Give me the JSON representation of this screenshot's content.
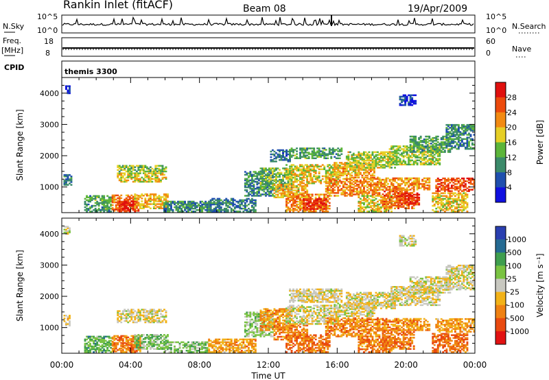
{
  "header": {
    "title": "Rankin Inlet (fitACF)",
    "beam": "Beam 08",
    "date": "19/Apr/2009"
  },
  "strip_labels": {
    "nsky": "N.Sky",
    "nsky_top": "10^5",
    "nsky_bottom": "10^0",
    "nsearch": "N.Search",
    "nsearch_top": "10^5",
    "nsearch_bottom": "10^0",
    "freq": "Freq.",
    "freq_unit": "[MHz]",
    "freq_top": "18",
    "freq_bottom": "8",
    "nave": "Nave",
    "nave_top": "60",
    "nave_bottom": "0",
    "cpid": "CPID",
    "cpid_value": "themis 3300"
  },
  "chart_data": [
    {
      "type": "heatmap",
      "name": "power",
      "ylabel": "Slant Range [km]",
      "xlabel": "Time UT",
      "x_ticks": [
        "00:00",
        "04:00",
        "08:00",
        "12:00",
        "16:00",
        "20:00",
        "00:00"
      ],
      "xlim_hours": [
        0,
        24
      ],
      "ylim_km": [
        180,
        4500
      ],
      "y_ticks": [
        1000,
        2000,
        3000,
        4000
      ],
      "colorbar_title": "Power [dB]",
      "colorbar_ticks": [
        "4",
        "8",
        "12",
        "16",
        "20",
        "24",
        "28"
      ],
      "colors": [
        "#1010e0",
        "#1f4fae",
        "#3b8a6a",
        "#5cb53a",
        "#e6cf26",
        "#f28a12",
        "#ec4a0c",
        "#e0100e"
      ],
      "regions": [
        {
          "t": [
            0.1,
            0.6
          ],
          "r": [
            1050,
            1400
          ],
          "level": 1.5
        },
        {
          "t": [
            0.2,
            0.5
          ],
          "r": [
            3980,
            4250
          ],
          "level": 0.5
        },
        {
          "t": [
            1.3,
            2.9
          ],
          "r": [
            200,
            700
          ],
          "level": 2.5
        },
        {
          "t": [
            2.9,
            4.4
          ],
          "r": [
            220,
            720
          ],
          "level": 5.5
        },
        {
          "t": [
            3.3,
            4.3
          ],
          "r": [
            200,
            550
          ],
          "level": 6.8
        },
        {
          "t": [
            4.2,
            6.1
          ],
          "r": [
            300,
            780
          ],
          "level": 4.5
        },
        {
          "t": [
            3.2,
            6.0
          ],
          "r": [
            1150,
            1450
          ],
          "level": 4.0
        },
        {
          "t": [
            3.2,
            6.0
          ],
          "r": [
            1480,
            1700
          ],
          "level": 3.2
        },
        {
          "t": [
            5.9,
            8.5
          ],
          "r": [
            200,
            520
          ],
          "level": 2.0
        },
        {
          "t": [
            8.5,
            11.2
          ],
          "r": [
            200,
            650
          ],
          "level": 1.8
        },
        {
          "t": [
            10.6,
            12.2
          ],
          "r": [
            700,
            1500
          ],
          "level": 2.0
        },
        {
          "t": [
            11.5,
            13.3
          ],
          "r": [
            900,
            1600
          ],
          "level": 3.0
        },
        {
          "t": [
            12.1,
            13.2
          ],
          "r": [
            1800,
            2200
          ],
          "level": 1.5
        },
        {
          "t": [
            12.3,
            14.2
          ],
          "r": [
            650,
            1100
          ],
          "level": 4.5
        },
        {
          "t": [
            13.0,
            15.5
          ],
          "r": [
            200,
            750
          ],
          "level": 5.2
        },
        {
          "t": [
            14.0,
            15.3
          ],
          "r": [
            280,
            600
          ],
          "level": 6.7
        },
        {
          "t": [
            13.0,
            16.0
          ],
          "r": [
            1100,
            1700
          ],
          "level": 4.0
        },
        {
          "t": [
            13.2,
            16.2
          ],
          "r": [
            1900,
            2250
          ],
          "level": 2.5
        },
        {
          "t": [
            15.3,
            18.5
          ],
          "r": [
            700,
            1300
          ],
          "level": 5.2
        },
        {
          "t": [
            15.8,
            18.2
          ],
          "r": [
            1350,
            1800
          ],
          "level": 4.5
        },
        {
          "t": [
            16.5,
            19.5
          ],
          "r": [
            1600,
            2100
          ],
          "level": 3.5
        },
        {
          "t": [
            17.2,
            19.2
          ],
          "r": [
            200,
            700
          ],
          "level": 4.0
        },
        {
          "t": [
            18.6,
            20.5
          ],
          "r": [
            300,
            900
          ],
          "level": 5.5
        },
        {
          "t": [
            19.5,
            20.8
          ],
          "r": [
            420,
            820
          ],
          "level": 6.3
        },
        {
          "t": [
            18.4,
            21.4
          ],
          "r": [
            900,
            1300
          ],
          "level": 5.0
        },
        {
          "t": [
            19.0,
            22.0
          ],
          "r": [
            1700,
            2300
          ],
          "level": 3.5
        },
        {
          "t": [
            20.2,
            22.6
          ],
          "r": [
            2100,
            2600
          ],
          "level": 2.5
        },
        {
          "t": [
            21.7,
            24.0
          ],
          "r": [
            850,
            1300
          ],
          "level": 6.0
        },
        {
          "t": [
            21.5,
            23.6
          ],
          "r": [
            200,
            800
          ],
          "level": 4.2
        },
        {
          "t": [
            22.3,
            24.0
          ],
          "r": [
            2200,
            3000
          ],
          "level": 2.0
        },
        {
          "t": [
            19.6,
            20.6
          ],
          "r": [
            3600,
            3950
          ],
          "level": 0.6
        }
      ]
    },
    {
      "type": "heatmap",
      "name": "velocity",
      "ylabel": "Slant Range [km]",
      "xlabel": "Time UT",
      "x_ticks": [
        "00:00",
        "04:00",
        "08:00",
        "12:00",
        "16:00",
        "20:00",
        "00:00"
      ],
      "xlim_hours": [
        0,
        24
      ],
      "ylim_km": [
        180,
        4500
      ],
      "y_ticks": [
        1000,
        2000,
        3000,
        4000
      ],
      "colorbar_title": "Velocity [m s⁻¹]",
      "colorbar_ticks": [
        "1000",
        "500",
        "100",
        "25",
        "-25",
        "-100",
        "-500",
        "-1000"
      ],
      "colors": [
        "#2a3fb0",
        "#256a92",
        "#3f9e4e",
        "#7ac342",
        "#c8c8c0",
        "#f2b218",
        "#ef8112",
        "#e94a10",
        "#e21212"
      ],
      "regions": [
        {
          "t": [
            0.1,
            0.5
          ],
          "r": [
            1050,
            1400
          ],
          "level": 4.6
        },
        {
          "t": [
            0.1,
            0.5
          ],
          "r": [
            3980,
            4250
          ],
          "level": 4.0
        },
        {
          "t": [
            1.3,
            2.9
          ],
          "r": [
            200,
            700
          ],
          "level": 2.5
        },
        {
          "t": [
            2.9,
            4.5
          ],
          "r": [
            220,
            720
          ],
          "level": 6.0
        },
        {
          "t": [
            3.4,
            4.3
          ],
          "r": [
            200,
            500
          ],
          "level": 6.4
        },
        {
          "t": [
            4.2,
            6.1
          ],
          "r": [
            300,
            780
          ],
          "level": 3.0
        },
        {
          "t": [
            3.2,
            6.0
          ],
          "r": [
            1150,
            1600
          ],
          "level": 4.3
        },
        {
          "t": [
            5.9,
            8.5
          ],
          "r": [
            200,
            520
          ],
          "level": 3.0
        },
        {
          "t": [
            8.5,
            11.2
          ],
          "r": [
            200,
            650
          ],
          "level": 5.5
        },
        {
          "t": [
            10.6,
            12.2
          ],
          "r": [
            700,
            1500
          ],
          "level": 3.2
        },
        {
          "t": [
            11.5,
            13.3
          ],
          "r": [
            900,
            1600
          ],
          "level": 5.6
        },
        {
          "t": [
            12.3,
            14.2
          ],
          "r": [
            600,
            1100
          ],
          "level": 6.0
        },
        {
          "t": [
            13.0,
            15.5
          ],
          "r": [
            200,
            750
          ],
          "level": 6.3
        },
        {
          "t": [
            13.0,
            16.0
          ],
          "r": [
            1100,
            1700
          ],
          "level": 4.2
        },
        {
          "t": [
            13.2,
            16.2
          ],
          "r": [
            1800,
            2250
          ],
          "level": 4.3
        },
        {
          "t": [
            15.3,
            18.5
          ],
          "r": [
            700,
            1300
          ],
          "level": 5.8
        },
        {
          "t": [
            15.8,
            18.2
          ],
          "r": [
            1350,
            1800
          ],
          "level": 4.2
        },
        {
          "t": [
            16.5,
            19.5
          ],
          "r": [
            1600,
            2100
          ],
          "level": 4.3
        },
        {
          "t": [
            17.2,
            19.2
          ],
          "r": [
            200,
            700
          ],
          "level": 6.2
        },
        {
          "t": [
            18.6,
            20.5
          ],
          "r": [
            300,
            900
          ],
          "level": 6.3
        },
        {
          "t": [
            18.4,
            21.4
          ],
          "r": [
            900,
            1300
          ],
          "level": 5.8
        },
        {
          "t": [
            19.0,
            22.0
          ],
          "r": [
            1700,
            2300
          ],
          "level": 4.2
        },
        {
          "t": [
            20.2,
            22.6
          ],
          "r": [
            2100,
            2600
          ],
          "level": 4.2
        },
        {
          "t": [
            21.7,
            24.0
          ],
          "r": [
            850,
            1300
          ],
          "level": 5.5
        },
        {
          "t": [
            21.5,
            23.6
          ],
          "r": [
            200,
            800
          ],
          "level": 6.4
        },
        {
          "t": [
            22.3,
            24.0
          ],
          "r": [
            2200,
            3000
          ],
          "level": 4.1
        },
        {
          "t": [
            19.6,
            20.6
          ],
          "r": [
            3600,
            3950
          ],
          "level": 4.0
        }
      ]
    }
  ]
}
